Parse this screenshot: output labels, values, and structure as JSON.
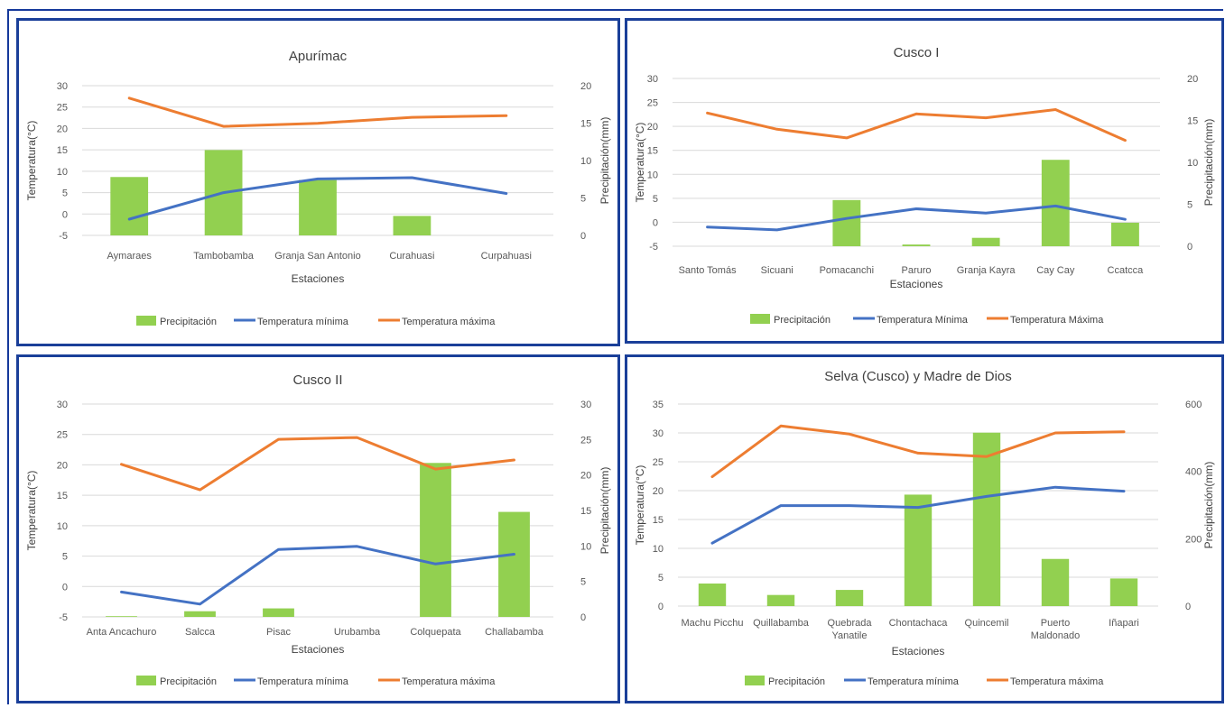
{
  "colors": {
    "precip": "#92d050",
    "tmin": "#4472c4",
    "tmax": "#ed7d31",
    "grid": "#d9d9d9",
    "border": "#1a3f99"
  },
  "chart_data": [
    {
      "type": "bar",
      "title": "Apurímac",
      "xlabel": "Estaciones",
      "ylabel": "Temperatura(°C)",
      "ylabel2": "Precipitación(mm)",
      "categories": [
        "Aymaraes",
        "Tambobamba",
        "Granja San Antonio",
        "Curahuasi",
        "Curpahuasi"
      ],
      "ylim": [
        -5,
        30
      ],
      "yticks": [
        "-5",
        "0",
        "5",
        "10",
        "15",
        "20",
        "25",
        "30"
      ],
      "y2lim": [
        0,
        20
      ],
      "y2ticks": [
        "0",
        "5",
        "10",
        "15",
        "20"
      ],
      "series": [
        {
          "name": "Precipitación",
          "axis": "right",
          "kind": "bar",
          "values": [
            7.8,
            11.4,
            7.4,
            2.6,
            null
          ]
        },
        {
          "name": "Temperatura mínima",
          "axis": "left",
          "kind": "line",
          "values": [
            -1.2,
            5.0,
            8.2,
            8.5,
            4.8
          ]
        },
        {
          "name": "Temperatura máxima",
          "axis": "left",
          "kind": "line",
          "values": [
            27.1,
            20.5,
            21.2,
            22.6,
            23.0
          ]
        }
      ]
    },
    {
      "type": "bar",
      "title": "Cusco I",
      "xlabel": "Estaciones",
      "ylabel": "Temperatura(°C)",
      "ylabel2": "Precipitación(mm)",
      "categories": [
        "Santo Tomás",
        "Sicuani",
        "Pomacanchi",
        "Paruro",
        "Granja Kayra",
        "Cay Cay",
        "Ccatcca"
      ],
      "ylim": [
        -5,
        30
      ],
      "yticks": [
        "-5",
        "0",
        "5",
        "10",
        "15",
        "20",
        "25",
        "30"
      ],
      "y2lim": [
        0,
        20
      ],
      "y2ticks": [
        "0",
        "5",
        "10",
        "15",
        "20"
      ],
      "series": [
        {
          "name": "Precipitación",
          "axis": "right",
          "kind": "bar",
          "values": [
            null,
            null,
            5.5,
            0.2,
            1.0,
            10.3,
            2.8
          ]
        },
        {
          "name": "Temperatura Mínima",
          "axis": "left",
          "kind": "line",
          "values": [
            -1.0,
            -1.6,
            0.8,
            2.8,
            1.9,
            3.4,
            0.6
          ]
        },
        {
          "name": "Temperatura Máxima",
          "axis": "left",
          "kind": "line",
          "values": [
            22.8,
            19.4,
            17.6,
            22.6,
            21.8,
            23.5,
            17.1
          ]
        }
      ]
    },
    {
      "type": "bar",
      "title": "Cusco II",
      "xlabel": "Estaciones",
      "ylabel": "Temperatura(°C)",
      "ylabel2": "Precipitación(mm)",
      "categories": [
        "Anta Ancachuro",
        "Salcca",
        "Pisac",
        "Urubamba",
        "Colquepata",
        "Challabamba"
      ],
      "ylim": [
        -5,
        30
      ],
      "yticks": [
        "-5",
        "0",
        "5",
        "10",
        "15",
        "20",
        "25",
        "30"
      ],
      "y2lim": [
        0,
        30
      ],
      "y2ticks": [
        "0",
        "5",
        "10",
        "15",
        "20",
        "25",
        "30"
      ],
      "series": [
        {
          "name": "Precipitación",
          "axis": "right",
          "kind": "bar",
          "values": [
            0.1,
            0.8,
            1.2,
            null,
            21.7,
            14.8
          ]
        },
        {
          "name": "Temperatura mínima",
          "axis": "left",
          "kind": "line",
          "values": [
            -0.9,
            -2.9,
            6.1,
            6.6,
            3.7,
            5.3
          ]
        },
        {
          "name": "Temperatura máxima",
          "axis": "left",
          "kind": "line",
          "values": [
            20.1,
            15.9,
            24.2,
            24.5,
            19.3,
            20.8
          ]
        }
      ]
    },
    {
      "type": "bar",
      "title": "Selva (Cusco) y Madre de Dios",
      "xlabel": "Estaciones",
      "ylabel": "Temperatura(°C)",
      "ylabel2": "Precipitación(mm)",
      "categories": [
        "Machu Picchu",
        "Quillabamba",
        "Quebrada Yanatile",
        "Chontachaca",
        "Quincemil",
        "Puerto Maldonado",
        "Iñapari"
      ],
      "ylim": [
        0,
        35
      ],
      "yticks": [
        "0",
        "5",
        "10",
        "15",
        "20",
        "25",
        "30",
        "35"
      ],
      "y2lim": [
        0,
        600
      ],
      "y2ticks": [
        "0",
        "200",
        "400",
        "600"
      ],
      "series": [
        {
          "name": "Precipitación",
          "axis": "right",
          "kind": "bar",
          "values": [
            67,
            33,
            48,
            331,
            515,
            140,
            82
          ]
        },
        {
          "name": "Temperatura mínima",
          "axis": "left",
          "kind": "line",
          "values": [
            10.9,
            17.4,
            17.4,
            17.1,
            19.0,
            20.6,
            19.9
          ]
        },
        {
          "name": "Temperatura máxima",
          "axis": "left",
          "kind": "line",
          "values": [
            22.4,
            31.2,
            29.8,
            26.5,
            25.9,
            30.0,
            30.2
          ]
        }
      ]
    }
  ]
}
